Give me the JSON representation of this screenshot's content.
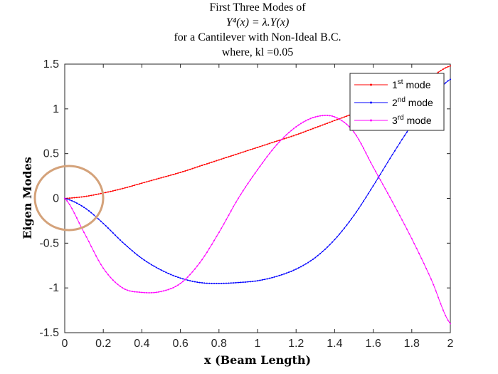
{
  "chart_data": {
    "type": "line",
    "title_lines": [
      "First Three Modes of",
      "Y⁴(x) = λ.Y(x)",
      "for a Cantilever with Non-Ideal B.C.",
      "where, kl =0.05"
    ],
    "xlabel": "x (Beam Length)",
    "ylabel": "Eigen Modes",
    "xlim": [
      0,
      2
    ],
    "ylim": [
      -1.5,
      1.5
    ],
    "xticks": [
      "0",
      "0.2",
      "0.4",
      "0.6",
      "0.8",
      "1",
      "1.2",
      "1.4",
      "1.6",
      "1.8",
      "2"
    ],
    "yticks": [
      "1.5",
      "1",
      "0.5",
      "0",
      "-0.5",
      "-1",
      "-1.5"
    ],
    "legend_position": "top-right",
    "grid": false,
    "annotation": "circle around origin",
    "x": [
      0,
      0.1,
      0.2,
      0.3,
      0.4,
      0.5,
      0.6,
      0.7,
      0.8,
      0.9,
      1.0,
      1.1,
      1.2,
      1.3,
      1.4,
      1.5,
      1.6,
      1.7,
      1.8,
      1.9,
      2.0
    ],
    "series": [
      {
        "name": "1st mode",
        "label_base": "1",
        "label_sup": "st",
        "label_rest": " mode",
        "color": "#ff0000",
        "values": [
          0,
          0.02,
          0.06,
          0.11,
          0.17,
          0.23,
          0.29,
          0.36,
          0.43,
          0.5,
          0.57,
          0.64,
          0.71,
          0.79,
          0.87,
          0.95,
          1.04,
          1.14,
          1.25,
          1.36,
          1.48
        ]
      },
      {
        "name": "2nd mode",
        "label_base": "2",
        "label_sup": "nd",
        "label_rest": " mode",
        "color": "#0000ff",
        "values": [
          0,
          -0.1,
          -0.28,
          -0.49,
          -0.67,
          -0.8,
          -0.89,
          -0.94,
          -0.95,
          -0.94,
          -0.92,
          -0.87,
          -0.79,
          -0.66,
          -0.46,
          -0.19,
          0.14,
          0.49,
          0.82,
          1.1,
          1.33
        ]
      },
      {
        "name": "3rd mode",
        "label_base": "3",
        "label_sup": "rd",
        "label_rest": " mode",
        "color": "#ff00ff",
        "values": [
          0,
          -0.38,
          -0.78,
          -1.0,
          -1.05,
          -1.04,
          -0.95,
          -0.72,
          -0.38,
          0.0,
          0.32,
          0.6,
          0.8,
          0.91,
          0.91,
          0.74,
          0.35,
          -0.04,
          -0.45,
          -0.9,
          -1.4
        ]
      }
    ]
  }
}
